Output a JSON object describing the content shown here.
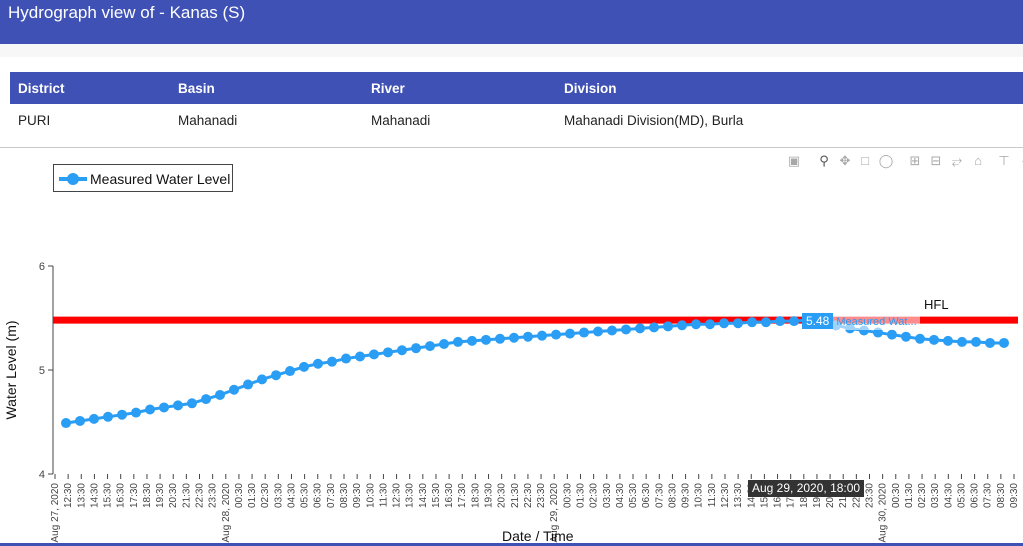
{
  "header": {
    "title": "Hydrograph view of - Kanas (S)"
  },
  "info_table": {
    "columns": [
      "District",
      "Basin",
      "River",
      "Division"
    ],
    "row": [
      "PURI",
      "Mahanadi",
      "Mahanadi",
      "Mahanadi Division(MD), Burla"
    ]
  },
  "modebar": {
    "icons": [
      "camera-icon",
      "zoom-icon",
      "pan-icon",
      "box-select-icon",
      "lasso-icon",
      "zoom-in-icon",
      "zoom-out-icon",
      "autoscale-icon",
      "home-icon",
      "spike-lines-icon",
      "hover-closest-icon"
    ]
  },
  "legend": {
    "series_label": "Measured Water Level"
  },
  "hover": {
    "x_label": "Aug 29, 2020, 18:00",
    "y_value": "5.48",
    "series_name": "Measured Wat..."
  },
  "colors": {
    "header": "#3f51b5",
    "series": "#2a9df4",
    "hfl": "#ff0000"
  },
  "chart_data": {
    "type": "line",
    "xlabel": "Date / Time",
    "ylabel": "Water Level (m)",
    "ylim": [
      4,
      6
    ],
    "yticks": [
      "4",
      "5",
      "6"
    ],
    "x_ticks": [
      "Aug 27, 2020",
      "12:30",
      "13:30",
      "14:30",
      "15:30",
      "16:30",
      "17:30",
      "18:30",
      "19:30",
      "20:30",
      "21:30",
      "22:30",
      "23:30",
      "Aug 28, 2020",
      "00:30",
      "01:30",
      "02:30",
      "03:30",
      "04:30",
      "05:30",
      "06:30",
      "07:30",
      "08:30",
      "09:30",
      "10:30",
      "11:30",
      "12:30",
      "13:30",
      "14:30",
      "15:30",
      "16:30",
      "17:30",
      "18:30",
      "19:30",
      "20:30",
      "21:30",
      "22:30",
      "23:30",
      "Aug 29, 2020",
      "00:30",
      "01:30",
      "02:30",
      "03:30",
      "04:30",
      "05:30",
      "06:30",
      "07:30",
      "08:30",
      "09:30",
      "10:30",
      "11:30",
      "12:30",
      "13:30",
      "14:30",
      "15:30",
      "16:30",
      "17:30",
      "18:30",
      "19:30",
      "20:30",
      "21:30",
      "22:30",
      "23:30",
      "Aug 30, 2020",
      "00:30",
      "01:30",
      "02:30",
      "03:30",
      "04:30",
      "05:30",
      "06:30",
      "07:30",
      "08:30",
      "09:30"
    ],
    "series": [
      {
        "name": "Measured Water Level",
        "values": [
          4.49,
          4.51,
          4.53,
          4.55,
          4.57,
          4.59,
          4.62,
          4.64,
          4.66,
          4.68,
          4.72,
          4.76,
          4.81,
          4.86,
          4.91,
          4.95,
          4.99,
          5.03,
          5.06,
          5.08,
          5.11,
          5.13,
          5.15,
          5.17,
          5.19,
          5.21,
          5.23,
          5.25,
          5.27,
          5.28,
          5.29,
          5.3,
          5.31,
          5.32,
          5.33,
          5.34,
          5.35,
          5.36,
          5.37,
          5.38,
          5.39,
          5.4,
          5.41,
          5.42,
          5.43,
          5.44,
          5.44,
          5.45,
          5.45,
          5.46,
          5.46,
          5.47,
          5.47,
          5.48,
          5.46,
          5.43,
          5.4,
          5.38,
          5.36,
          5.34,
          5.32,
          5.3,
          5.29,
          5.28,
          5.27,
          5.27,
          5.26,
          5.26
        ]
      }
    ],
    "hfl": {
      "label": "HFL",
      "value": 5.48
    },
    "grid": false,
    "legend_position": "top-left"
  }
}
